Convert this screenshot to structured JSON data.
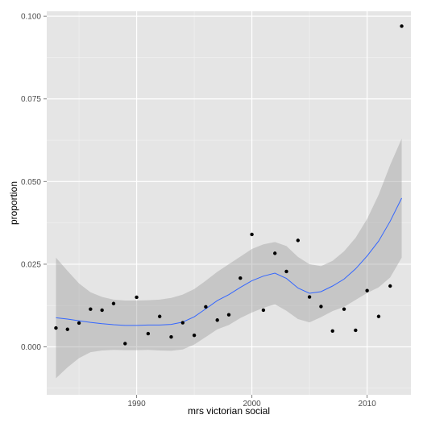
{
  "chart_data": {
    "type": "scatter",
    "xlabel": "mrs victorian social",
    "ylabel": "proportion",
    "xlim": [
      1982.2,
      2013.8
    ],
    "ylim": [
      -0.0145,
      0.1015
    ],
    "x_ticks": [
      1990,
      2000,
      2010
    ],
    "x_tick_labels": [
      "1990",
      "2000",
      "2010"
    ],
    "y_ticks": [
      0.0,
      0.025,
      0.05,
      0.075,
      0.1
    ],
    "y_tick_labels": [
      "0.000",
      "0.025",
      "0.050",
      "0.075",
      "0.100"
    ],
    "grid": true,
    "points": {
      "x": [
        1983,
        1984,
        1985,
        1986,
        1987,
        1988,
        1989,
        1990,
        1991,
        1992,
        1993,
        1994,
        1995,
        1996,
        1997,
        1998,
        1999,
        2000,
        2001,
        2002,
        2003,
        2004,
        2005,
        2006,
        2007,
        2008,
        2009,
        2010,
        2011,
        2012,
        2013
      ],
      "y": [
        0.0057,
        0.0053,
        0.0072,
        0.0114,
        0.0111,
        0.0131,
        0.001,
        0.015,
        0.004,
        0.0092,
        0.003,
        0.0073,
        0.0035,
        0.0121,
        0.0081,
        0.0097,
        0.0208,
        0.034,
        0.0111,
        0.0283,
        0.0228,
        0.0322,
        0.0151,
        0.0122,
        0.0048,
        0.0114,
        0.005,
        0.017,
        0.0092,
        0.0184,
        0.097
      ]
    },
    "smooth": {
      "x": [
        1983,
        1984,
        1985,
        1986,
        1987,
        1988,
        1989,
        1990,
        1991,
        1992,
        1993,
        1994,
        1995,
        1996,
        1997,
        1998,
        1999,
        2000,
        2001,
        2002,
        2003,
        2004,
        2005,
        2006,
        2007,
        2008,
        2009,
        2010,
        2011,
        2012,
        2013
      ],
      "y": [
        0.0088,
        0.0084,
        0.0079,
        0.0074,
        0.007,
        0.0067,
        0.0065,
        0.0065,
        0.0066,
        0.0066,
        0.0068,
        0.0075,
        0.0091,
        0.0115,
        0.014,
        0.0158,
        0.018,
        0.02,
        0.0214,
        0.0223,
        0.0207,
        0.0178,
        0.0162,
        0.0167,
        0.0184,
        0.0205,
        0.0236,
        0.0275,
        0.032,
        0.038,
        0.045
      ],
      "ci_upper": [
        0.027,
        0.023,
        0.0192,
        0.0165,
        0.0151,
        0.0143,
        0.014,
        0.014,
        0.0141,
        0.0143,
        0.0148,
        0.0158,
        0.0175,
        0.02,
        0.0227,
        0.025,
        0.0273,
        0.0296,
        0.031,
        0.0317,
        0.0305,
        0.0272,
        0.025,
        0.0244,
        0.026,
        0.0289,
        0.033,
        0.0387,
        0.046,
        0.055,
        0.063
      ],
      "ci_lower": [
        -0.0095,
        -0.0062,
        -0.0034,
        -0.0016,
        -0.0011,
        -0.0009,
        -0.001,
        -0.001,
        -0.0009,
        -0.0011,
        -0.0012,
        -0.0008,
        0.0007,
        0.003,
        0.0053,
        0.0066,
        0.0087,
        0.0104,
        0.0118,
        0.0129,
        0.0109,
        0.0084,
        0.0074,
        0.009,
        0.0108,
        0.0121,
        0.0142,
        0.0163,
        0.018,
        0.021,
        0.027
      ]
    }
  }
}
